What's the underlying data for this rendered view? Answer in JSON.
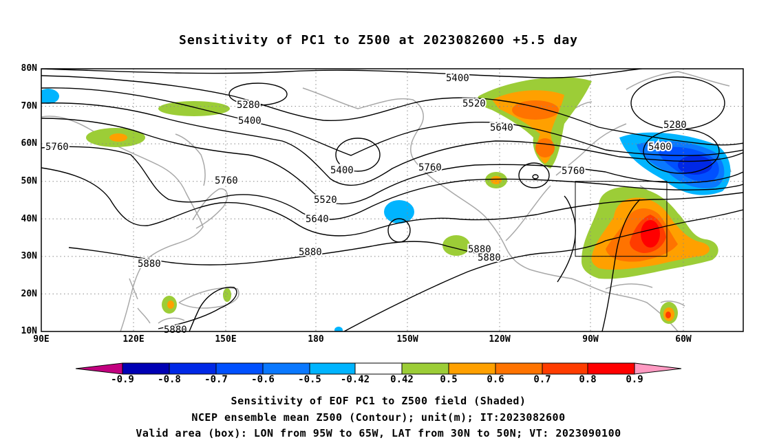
{
  "title": "Sensitivity of PC1 to Z500 at 2023082600 +5.5 day",
  "lat_ticks": [
    "80N",
    "70N",
    "60N",
    "50N",
    "40N",
    "30N",
    "20N",
    "10N"
  ],
  "lon_ticks": [
    "90E",
    "120E",
    "150E",
    "180",
    "150W",
    "120W",
    "90W",
    "60W"
  ],
  "contour_labels": [
    {
      "text": "5400"
    },
    {
      "text": "5280"
    },
    {
      "text": "5400"
    },
    {
      "text": "5520"
    },
    {
      "text": "5640"
    },
    {
      "text": "5280"
    },
    {
      "text": "5400"
    },
    {
      "text": "5760"
    },
    {
      "text": "5400"
    },
    {
      "text": "5760"
    },
    {
      "text": "5760"
    },
    {
      "text": "5520"
    },
    {
      "text": "5640"
    },
    {
      "text": "5760"
    },
    {
      "text": "5880"
    },
    {
      "text": "5880"
    },
    {
      "text": "5880"
    },
    {
      "text": "5880"
    },
    {
      "text": "5880"
    }
  ],
  "colorbar": {
    "labels": [
      "-0.9",
      "-0.8",
      "-0.7",
      "-0.6",
      "-0.5",
      "-0.42",
      "0.42",
      "0.5",
      "0.6",
      "0.7",
      "0.8",
      "0.9"
    ],
    "colors": [
      "#c2007f",
      "#0000b4",
      "#0028e6",
      "#0050ff",
      "#0a78ff",
      "#00b4ff",
      "#ffffff",
      "#9ccd37",
      "#ffa000",
      "#ff7300",
      "#ff3c00",
      "#ff0000",
      "#ff9ac2"
    ]
  },
  "footer": {
    "line1": "Sensitivity of EOF PC1 to Z500 field (Shaded)",
    "line2": "NCEP ensemble mean Z500 (Contour); unit(m); IT:2023082600",
    "line3": "Valid area (box): LON from 95W to 65W, LAT from 30N to 50N; VT: 2023090100"
  }
}
